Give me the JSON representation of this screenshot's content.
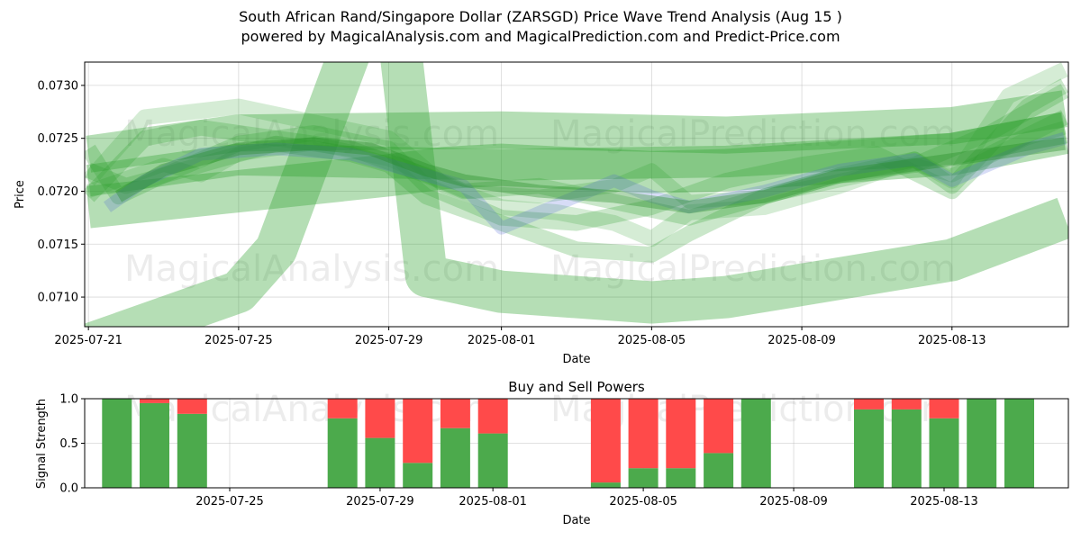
{
  "title_line1": "South African Rand/Singapore Dollar (ZARSGD) Price Wave Trend Analysis (Aug 15 )",
  "title_line2": "powered by MagicalAnalysis.com and MagicalPrediction.com and Predict-Price.com",
  "watermarks": [
    "MagicalAnalysis.com",
    "MagicalPrediction.com"
  ],
  "chart_data": [
    {
      "type": "line",
      "title": "",
      "xlabel": "Date",
      "ylabel": "Price",
      "ylim": [
        0.07072,
        0.07322
      ],
      "xlim_days": [
        -0.1,
        26.1
      ],
      "x_start_date": "2025-07-21",
      "x_ticks": [
        {
          "day": 0,
          "label": "2025-07-21"
        },
        {
          "day": 4,
          "label": "2025-07-25"
        },
        {
          "day": 8,
          "label": "2025-07-29"
        },
        {
          "day": 11,
          "label": "2025-08-01"
        },
        {
          "day": 15,
          "label": "2025-08-05"
        },
        {
          "day": 19,
          "label": "2025-08-09"
        },
        {
          "day": 23,
          "label": "2025-08-13"
        }
      ],
      "y_ticks": [
        {
          "value": 0.071,
          "label": "0.0710"
        },
        {
          "value": 0.0715,
          "label": "0.0715"
        },
        {
          "value": 0.072,
          "label": "0.0720"
        },
        {
          "value": 0.0725,
          "label": "0.0725"
        },
        {
          "value": 0.073,
          "label": "0.0730"
        }
      ],
      "grid": true,
      "series": [
        {
          "name": "wide-band-1",
          "color": "#2ca02c",
          "opacity": 0.35,
          "width_price": 0.0004,
          "x": [
            0,
            4,
            5,
            8,
            9,
            11,
            15,
            17,
            23,
            26
          ],
          "values": [
            0.07055,
            0.07105,
            0.07145,
            0.0743,
            0.0712,
            0.07105,
            0.07095,
            0.071,
            0.07135,
            0.07175
          ]
        },
        {
          "name": "wide-band-2",
          "color": "#2ca02c",
          "opacity": 0.35,
          "width_price": 0.0004,
          "x": [
            0,
            4,
            8,
            9.5,
            11,
            15,
            17,
            23,
            26
          ],
          "values": [
            0.07185,
            0.072,
            0.07215,
            0.07222,
            0.07225,
            0.07218,
            0.0722,
            0.07235,
            0.07255
          ]
        },
        {
          "name": "wide-band-3",
          "color": "#2ca02c",
          "opacity": 0.35,
          "width_price": 0.00035,
          "x": [
            0,
            4,
            11,
            17,
            23,
            26
          ],
          "values": [
            0.07235,
            0.07255,
            0.07258,
            0.07253,
            0.07262,
            0.07278
          ]
        },
        {
          "name": "wide-band-4",
          "color": "#2ca02c",
          "opacity": 0.35,
          "width_price": 0.0003,
          "x": [
            0,
            4,
            11,
            17,
            23,
            26
          ],
          "values": [
            0.0721,
            0.0723,
            0.07225,
            0.07228,
            0.0724,
            0.0726
          ]
        },
        {
          "name": "wave-1",
          "color": "#2ca02c",
          "opacity": 0.25,
          "width_price": 0.00015,
          "x": [
            0,
            0.8,
            2,
            4,
            6,
            8,
            9,
            10,
            11,
            13,
            15,
            17,
            19,
            21,
            23,
            24,
            26
          ],
          "values": [
            0.0724,
            0.07195,
            0.07215,
            0.07245,
            0.07255,
            0.0724,
            0.07205,
            0.0719,
            0.07175,
            0.0717,
            0.07185,
            0.0721,
            0.07225,
            0.07235,
            0.072,
            0.07235,
            0.0727
          ]
        },
        {
          "name": "wave-2",
          "color": "#2ca02c",
          "opacity": 0.25,
          "width_price": 0.00015,
          "x": [
            0,
            1,
            3,
            5,
            7,
            8,
            9,
            11,
            13,
            15,
            16,
            18,
            20,
            22,
            23,
            25,
            26
          ],
          "values": [
            0.0722,
            0.07205,
            0.07225,
            0.07245,
            0.07235,
            0.07225,
            0.07195,
            0.0717,
            0.07145,
            0.0714,
            0.0716,
            0.07195,
            0.07215,
            0.0723,
            0.07205,
            0.0728,
            0.073
          ]
        },
        {
          "name": "wave-3",
          "color": "#2ca02c",
          "opacity": 0.25,
          "width_price": 0.00015,
          "x": [
            0,
            1.5,
            3,
            5,
            7,
            9,
            10,
            12,
            14,
            16,
            18,
            20,
            22,
            24,
            26
          ],
          "values": [
            0.07195,
            0.0725,
            0.0726,
            0.0725,
            0.0724,
            0.07215,
            0.072,
            0.07205,
            0.0719,
            0.07175,
            0.07195,
            0.07215,
            0.07225,
            0.07255,
            0.07295
          ]
        },
        {
          "name": "wave-4",
          "color": "#2ca02c",
          "opacity": 0.2,
          "width_price": 0.00015,
          "x": [
            0,
            1.5,
            4,
            6,
            8,
            9.5,
            11,
            12.5,
            14,
            15,
            16,
            18,
            20,
            22,
            23,
            24.5,
            26
          ],
          "values": [
            0.0721,
            0.0727,
            0.0728,
            0.07265,
            0.0725,
            0.07205,
            0.07185,
            0.0718,
            0.0717,
            0.07155,
            0.0718,
            0.07185,
            0.07205,
            0.0723,
            0.0721,
            0.0729,
            0.07315
          ]
        },
        {
          "name": "wave-5",
          "color": "#2ca02c",
          "opacity": 0.22,
          "width_price": 0.00013,
          "x": [
            0,
            2,
            3,
            4,
            6,
            8,
            9,
            10,
            12,
            14,
            15,
            16,
            18,
            20,
            22,
            23,
            25,
            26
          ],
          "values": [
            0.072,
            0.07225,
            0.07215,
            0.07235,
            0.07245,
            0.0723,
            0.07215,
            0.072,
            0.07195,
            0.07205,
            0.0722,
            0.0719,
            0.07195,
            0.0721,
            0.07225,
            0.07215,
            0.0725,
            0.0726
          ]
        },
        {
          "name": "wave-blue",
          "color": "#4a5fd8",
          "opacity": 0.22,
          "width_price": 0.00012,
          "x": [
            0.5,
            1.5,
            3,
            5,
            7,
            8,
            10,
            11,
            12,
            14,
            15,
            16,
            18,
            20,
            22,
            23,
            25,
            26
          ],
          "values": [
            0.07185,
            0.0721,
            0.07235,
            0.0724,
            0.07235,
            0.07225,
            0.07205,
            0.07165,
            0.0718,
            0.0721,
            0.07195,
            0.07185,
            0.072,
            0.0722,
            0.0723,
            0.0721,
            0.0724,
            0.0725
          ]
        },
        {
          "name": "wave-dark",
          "color": "#1f8a1f",
          "opacity": 0.35,
          "width_price": 0.00012,
          "x": [
            0.8,
            2,
            4,
            6,
            7.5,
            9,
            10,
            12,
            14,
            15,
            16,
            18,
            20,
            22,
            24,
            26
          ],
          "values": [
            0.07195,
            0.0722,
            0.0724,
            0.07245,
            0.0724,
            0.0722,
            0.0721,
            0.072,
            0.07195,
            0.0719,
            0.07185,
            0.07195,
            0.07215,
            0.07225,
            0.07235,
            0.07245
          ]
        }
      ]
    },
    {
      "type": "bar",
      "title": "Buy and Sell Powers",
      "xlabel": "Date",
      "ylabel": "Signal Strength",
      "ylim": [
        0,
        1
      ],
      "y_ticks": [
        {
          "value": 0.0,
          "label": "0.0"
        },
        {
          "value": 0.5,
          "label": "0.5"
        },
        {
          "value": 1.0,
          "label": "1.0"
        }
      ],
      "x_ticks": [
        {
          "day": 4,
          "label": "2025-07-25"
        },
        {
          "day": 8,
          "label": "2025-07-29"
        },
        {
          "day": 11,
          "label": "2025-08-01"
        },
        {
          "day": 15,
          "label": "2025-08-05"
        },
        {
          "day": 19,
          "label": "2025-08-09"
        },
        {
          "day": 23,
          "label": "2025-08-13"
        }
      ],
      "buy_color": "#4caa4c",
      "sell_color": "#ff4a4a",
      "days": [
        1,
        2,
        3,
        7,
        8,
        9,
        10,
        11,
        14,
        15,
        16,
        17,
        18,
        21,
        22,
        23,
        24,
        25
      ],
      "buy": [
        1.0,
        0.95,
        0.83,
        0.78,
        0.56,
        0.28,
        0.67,
        0.61,
        0.06,
        0.22,
        0.22,
        0.39,
        1.0,
        0.88,
        0.88,
        0.78,
        1.0,
        1.0
      ],
      "sell": [
        0.0,
        0.05,
        0.17,
        0.22,
        0.44,
        0.72,
        0.33,
        0.39,
        0.94,
        0.78,
        0.78,
        0.61,
        0.0,
        0.12,
        0.12,
        0.22,
        0.0,
        0.0
      ]
    }
  ]
}
